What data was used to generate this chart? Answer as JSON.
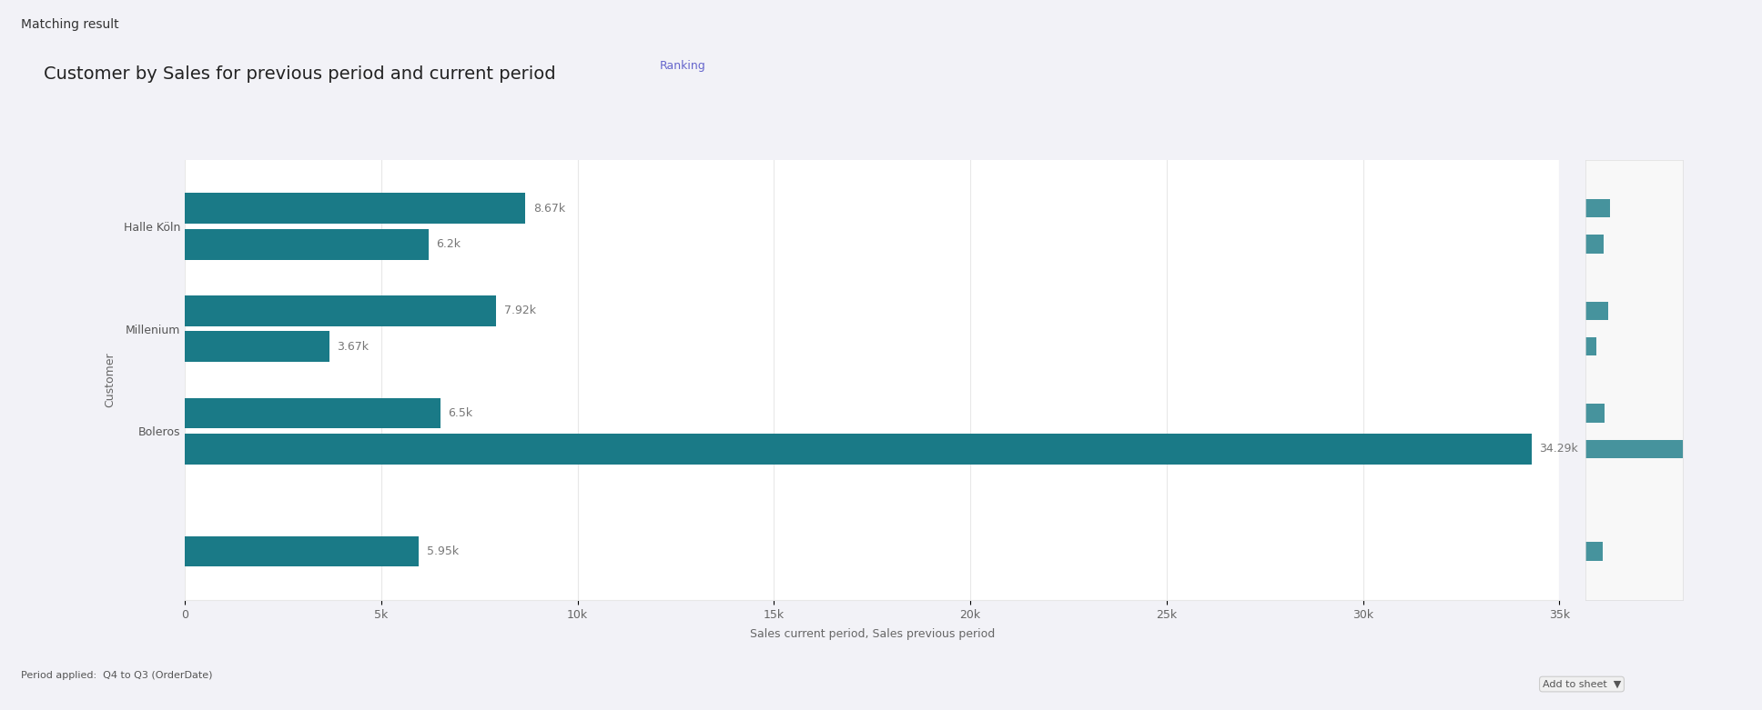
{
  "title": "Customer by Sales for previous period and current period",
  "ranking_label": "Ranking",
  "xlabel": "Sales current period, Sales previous period",
  "ylabel": "Customer",
  "customers": [
    "Halle Köln",
    "Millenium",
    "Boleros",
    ""
  ],
  "current_period": [
    8670,
    7920,
    6500,
    0
  ],
  "previous_period": [
    6200,
    3670,
    34290,
    5950
  ],
  "bar_color": "#1a7a87",
  "xlim": [
    0,
    35000
  ],
  "xticks": [
    0,
    5000,
    10000,
    15000,
    20000,
    25000,
    30000,
    35000
  ],
  "xtick_labels": [
    "0",
    "5k",
    "10k",
    "15k",
    "20k",
    "25k",
    "30k",
    "35k"
  ],
  "bg_color": "#ffffff",
  "panel_bg": "#ffffff",
  "outer_bg": "#f2f2f7",
  "border_color": "#6666bb",
  "grid_color": "#e8e8e8",
  "value_labels_current": [
    "8.67k",
    "7.92k",
    "6.5k",
    ""
  ],
  "value_labels_previous": [
    "6.2k",
    "3.67k",
    "34.29k",
    "5.95k"
  ],
  "title_fontsize": 14,
  "label_fontsize": 9,
  "tick_fontsize": 9,
  "axis_label_fontsize": 9,
  "matching_result_text": "Matching result",
  "period_text": "Period applied:  Q4 to Q3 (OrderDate)"
}
